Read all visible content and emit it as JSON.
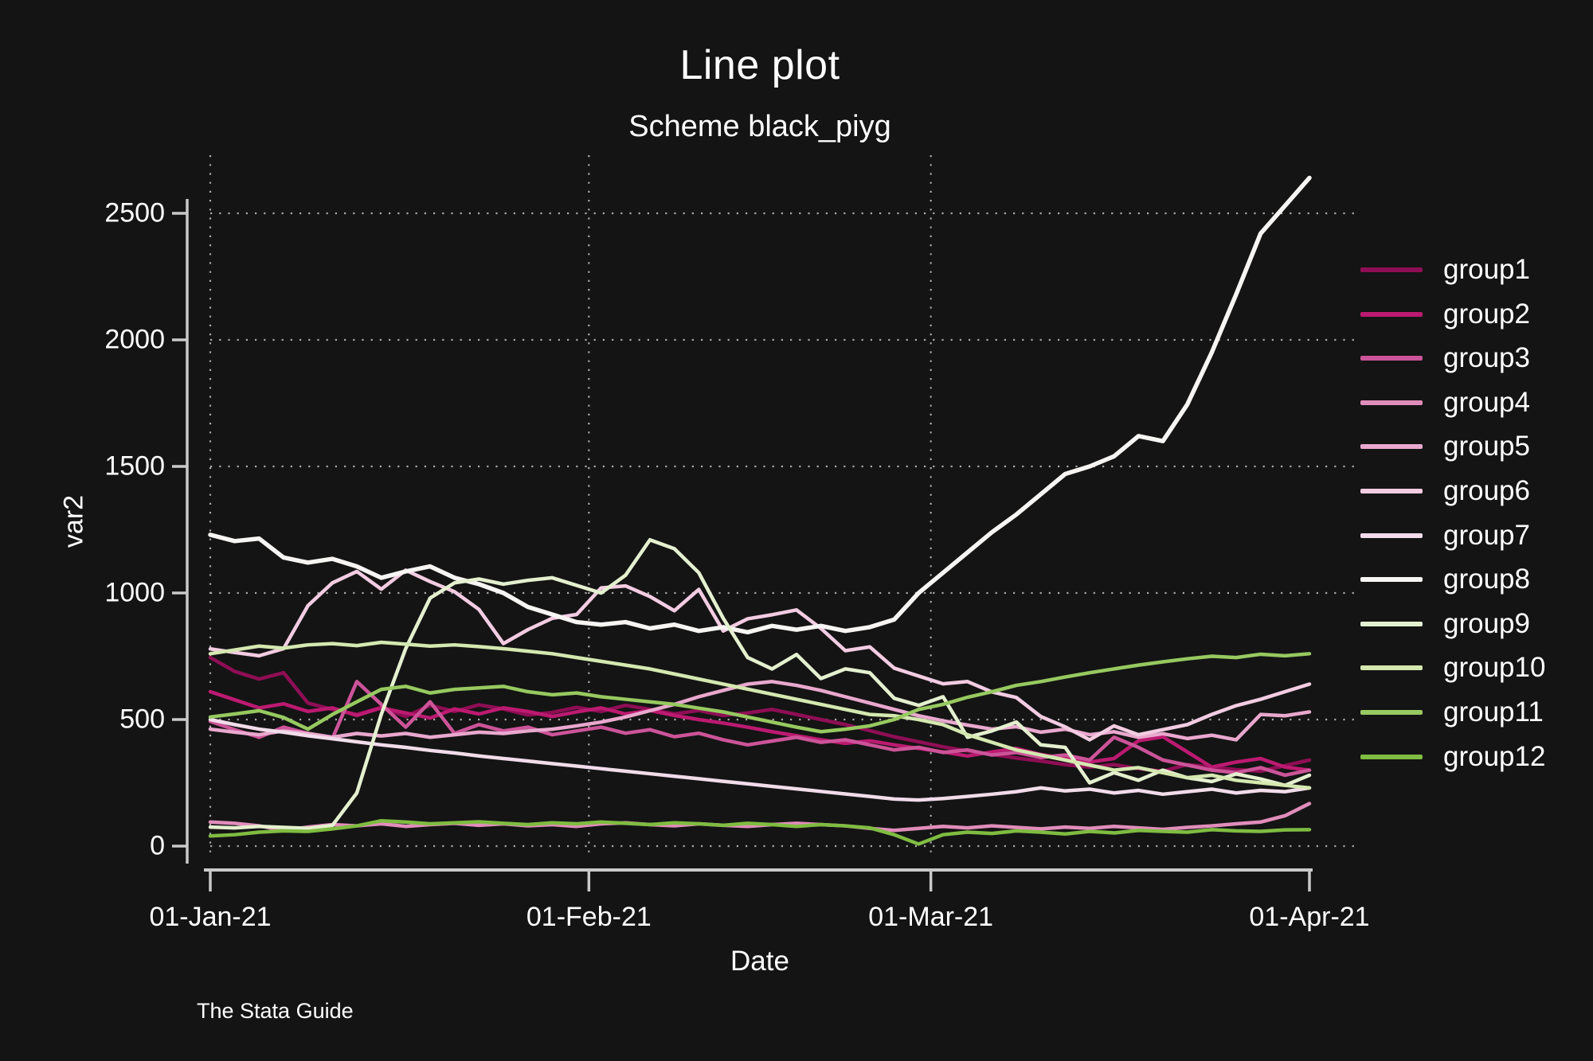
{
  "title": "Line plot",
  "subtitle": "Scheme black_piyg",
  "caption": "The Stata Guide",
  "colors": {
    "background": "#141414",
    "text": "#ffffff",
    "axis": "#c9c9c9",
    "grid": "#a8a8a8"
  },
  "chart_data": {
    "type": "line",
    "title": "Line plot",
    "subtitle": "Scheme black_piyg",
    "xlabel": "Date",
    "ylabel": "var2",
    "legend_position": "right",
    "grid_style": "dotted",
    "x_axis": {
      "range_days": [
        0,
        90
      ],
      "tick_days": [
        0,
        31,
        59,
        90
      ],
      "tick_labels": [
        "01-Jan-21",
        "01-Feb-21",
        "01-Mar-21",
        "01-Apr-21"
      ],
      "gridline_days": [
        0,
        31,
        59
      ]
    },
    "y_axis": {
      "ticks": [
        0,
        500,
        1000,
        1500,
        2000,
        2500
      ],
      "range": [
        0,
        2500
      ]
    },
    "x_days": [
      0,
      2,
      4,
      6,
      8,
      10,
      12,
      14,
      16,
      18,
      20,
      22,
      24,
      26,
      28,
      30,
      32,
      34,
      36,
      38,
      40,
      42,
      44,
      46,
      48,
      50,
      52,
      54,
      56,
      58,
      60,
      62,
      64,
      66,
      68,
      70,
      72,
      74,
      76,
      78,
      80,
      82,
      84,
      86,
      88,
      90
    ],
    "series": [
      {
        "name": "group1",
        "color": "#8e0e55",
        "width": 4.5,
        "values": [
          745,
          690,
          660,
          685,
          565,
          540,
          520,
          548,
          512,
          556,
          532,
          558,
          542,
          518,
          528,
          548,
          532,
          556,
          540,
          522,
          536,
          516,
          526,
          540,
          520,
          500,
          480,
          456,
          432,
          412,
          392,
          376,
          362,
          348,
          336,
          322,
          312,
          322,
          306,
          296,
          322,
          312,
          302,
          296,
          318,
          340
        ]
      },
      {
        "name": "group2",
        "color": "#bc1a71",
        "width": 4.5,
        "values": [
          610,
          578,
          546,
          562,
          532,
          546,
          516,
          546,
          526,
          506,
          542,
          522,
          546,
          532,
          512,
          530,
          546,
          522,
          536,
          516,
          500,
          486,
          470,
          452,
          436,
          420,
          406,
          416,
          400,
          386,
          372,
          356,
          372,
          386,
          362,
          346,
          332,
          346,
          416,
          432,
          372,
          312,
          332,
          346,
          312,
          300
        ]
      },
      {
        "name": "group3",
        "color": "#cc5499",
        "width": 4.5,
        "values": [
          493,
          460,
          430,
          470,
          445,
          425,
          650,
          560,
          470,
          570,
          445,
          480,
          455,
          470,
          440,
          455,
          470,
          446,
          460,
          432,
          446,
          420,
          400,
          415,
          430,
          410,
          420,
          400,
          380,
          390,
          370,
          380,
          360,
          370,
          350,
          360,
          340,
          430,
          390,
          340,
          320,
          300,
          290,
          310,
          280,
          300
        ]
      },
      {
        "name": "group4",
        "color": "#e18dbb",
        "width": 4.5,
        "values": [
          95,
          90,
          80,
          62,
          75,
          85,
          80,
          88,
          78,
          85,
          90,
          82,
          88,
          80,
          85,
          78,
          88,
          92,
          85,
          80,
          88,
          82,
          78,
          85,
          90,
          85,
          80,
          70,
          62,
          70,
          78,
          72,
          80,
          74,
          68,
          75,
          70,
          78,
          72,
          66,
          74,
          80,
          88,
          95,
          120,
          168
        ]
      },
      {
        "name": "group5",
        "color": "#e9a8ce",
        "width": 4.5,
        "values": [
          462,
          450,
          440,
          455,
          445,
          430,
          445,
          435,
          445,
          430,
          440,
          450,
          445,
          455,
          462,
          475,
          490,
          510,
          535,
          560,
          590,
          615,
          640,
          650,
          635,
          615,
          590,
          565,
          540,
          515,
          495,
          478,
          462,
          472,
          450,
          462,
          440,
          452,
          430,
          444,
          425,
          438,
          420,
          520,
          515,
          530
        ]
      },
      {
        "name": "group6",
        "color": "#f3cce2",
        "width": 4.5,
        "values": [
          779,
          765,
          752,
          780,
          950,
          1040,
          1085,
          1015,
          1090,
          1045,
          1005,
          935,
          800,
          855,
          900,
          915,
          1020,
          1028,
          986,
          930,
          1014,
          850,
          898,
          914,
          933,
          860,
          772,
          787,
          703,
          672,
          641,
          650,
          609,
          587,
          512,
          471,
          420,
          475,
          440,
          460,
          480,
          520,
          555,
          580,
          610,
          640
        ]
      },
      {
        "name": "group7",
        "color": "#f1dcea",
        "width": 4.5,
        "values": [
          500,
          480,
          462,
          450,
          436,
          424,
          412,
          400,
          390,
          378,
          368,
          356,
          346,
          336,
          326,
          316,
          306,
          296,
          286,
          276,
          266,
          256,
          246,
          236,
          226,
          216,
          206,
          196,
          186,
          182,
          188,
          196,
          205,
          215,
          230,
          218,
          225,
          210,
          220,
          205,
          215,
          225,
          210,
          220,
          215,
          230
        ]
      },
      {
        "name": "group8",
        "color": "#f6f5f3",
        "width": 5.5,
        "values": [
          1230,
          1205,
          1215,
          1140,
          1120,
          1135,
          1105,
          1060,
          1085,
          1105,
          1060,
          1035,
          1000,
          945,
          915,
          885,
          875,
          885,
          860,
          875,
          850,
          865,
          845,
          870,
          855,
          870,
          850,
          865,
          895,
          1000,
          1080,
          1160,
          1240,
          1310,
          1390,
          1470,
          1500,
          1540,
          1620,
          1600,
          1745,
          1950,
          2180,
          2420,
          2530,
          2640
        ]
      },
      {
        "name": "group9",
        "color": "#e4f0cf",
        "width": 4.5,
        "values": [
          75,
          72,
          78,
          74,
          70,
          82,
          210,
          520,
          780,
          980,
          1040,
          1055,
          1035,
          1050,
          1060,
          1030,
          1000,
          1070,
          1210,
          1175,
          1080,
          900,
          745,
          700,
          757,
          662,
          700,
          685,
          584,
          556,
          590,
          430,
          455,
          490,
          400,
          390,
          250,
          290,
          260,
          300,
          270,
          255,
          285,
          265,
          240,
          280
        ]
      },
      {
        "name": "group10",
        "color": "#d4e8b0",
        "width": 4.5,
        "values": [
          760,
          775,
          790,
          782,
          795,
          800,
          792,
          805,
          798,
          790,
          795,
          788,
          780,
          770,
          760,
          745,
          730,
          715,
          700,
          680,
          660,
          640,
          620,
          600,
          580,
          560,
          540,
          520,
          515,
          500,
          480,
          440,
          410,
          380,
          360,
          340,
          320,
          300,
          310,
          290,
          270,
          280,
          260,
          250,
          240,
          230
        ]
      },
      {
        "name": "group11",
        "color": "#97c960",
        "width": 4.5,
        "values": [
          510,
          522,
          535,
          508,
          462,
          520,
          570,
          619,
          631,
          605,
          619,
          625,
          631,
          610,
          598,
          605,
          590,
          580,
          570,
          560,
          545,
          530,
          510,
          490,
          470,
          452,
          462,
          475,
          500,
          540,
          560,
          588,
          610,
          635,
          650,
          668,
          685,
          700,
          715,
          728,
          740,
          750,
          745,
          758,
          752,
          760
        ]
      },
      {
        "name": "group12",
        "color": "#7fbc41",
        "width": 4.5,
        "values": [
          40,
          45,
          55,
          60,
          58,
          68,
          80,
          100,
          95,
          88,
          92,
          96,
          90,
          85,
          92,
          88,
          95,
          90,
          85,
          92,
          88,
          82,
          90,
          85,
          78,
          85,
          80,
          72,
          45,
          8,
          45,
          55,
          50,
          60,
          55,
          48,
          58,
          52,
          62,
          58,
          55,
          65,
          60,
          58,
          64,
          65
        ]
      }
    ]
  },
  "legend": {
    "items": [
      "group1",
      "group2",
      "group3",
      "group4",
      "group5",
      "group6",
      "group7",
      "group8",
      "group9",
      "group10",
      "group11",
      "group12"
    ]
  }
}
